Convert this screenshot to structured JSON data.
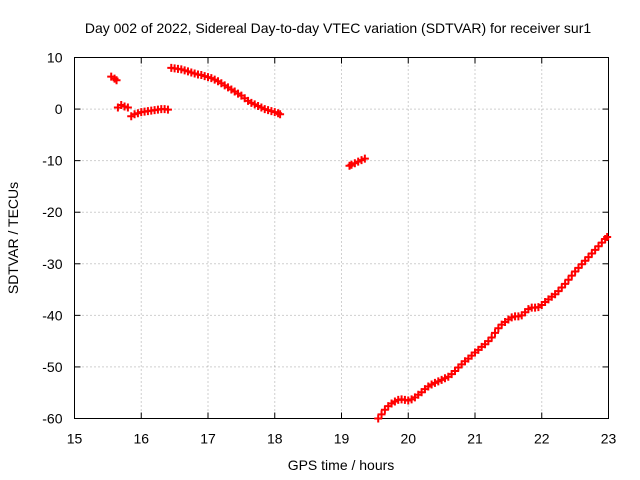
{
  "chart_data": {
    "type": "scatter",
    "title": "Day 002 of 2022, Sidereal Day-to-day VTEC variation (SDTVAR) for receiver sur1",
    "xlabel": "GPS time / hours",
    "ylabel": "SDTVAR / TECUs",
    "xlim": [
      15,
      23
    ],
    "ylim": [
      -60,
      10
    ],
    "xticks": [
      15,
      16,
      17,
      18,
      19,
      20,
      21,
      22,
      23
    ],
    "yticks": [
      10,
      0,
      -10,
      -20,
      -30,
      -40,
      -50,
      -60
    ],
    "xtick_labels": [
      "15",
      "16",
      "17",
      "18",
      "19",
      "20",
      "21",
      "22",
      "23"
    ],
    "ytick_labels": [
      "10",
      "0",
      "-10",
      "-20",
      "-30",
      "-40",
      "-50",
      "-60"
    ],
    "grid": true,
    "marker": "+",
    "color": "#ff0000",
    "series": [
      {
        "name": "sur1",
        "segments": [
          [
            [
              15.55,
              6.3
            ],
            [
              15.6,
              5.9
            ],
            [
              15.63,
              5.6
            ]
          ],
          [
            [
              15.65,
              0.3
            ],
            [
              15.7,
              0.8
            ],
            [
              15.75,
              0.5
            ],
            [
              15.8,
              0.3
            ]
          ],
          [
            [
              15.85,
              -1.4
            ],
            [
              15.9,
              -1.0
            ],
            [
              15.95,
              -0.8
            ],
            [
              16.0,
              -0.6
            ],
            [
              16.05,
              -0.5
            ],
            [
              16.1,
              -0.4
            ],
            [
              16.15,
              -0.3
            ],
            [
              16.2,
              -0.2
            ],
            [
              16.25,
              -0.1
            ],
            [
              16.3,
              0.0
            ],
            [
              16.35,
              0.0
            ],
            [
              16.4,
              -0.1
            ]
          ],
          [
            [
              16.45,
              8.0
            ],
            [
              16.5,
              7.9
            ],
            [
              16.55,
              7.8
            ],
            [
              16.6,
              7.7
            ],
            [
              16.65,
              7.5
            ],
            [
              16.7,
              7.3
            ],
            [
              16.75,
              7.1
            ],
            [
              16.8,
              6.9
            ],
            [
              16.85,
              6.7
            ],
            [
              16.9,
              6.6
            ],
            [
              16.95,
              6.4
            ],
            [
              17.0,
              6.2
            ],
            [
              17.05,
              6.0
            ],
            [
              17.1,
              5.7
            ],
            [
              17.15,
              5.4
            ],
            [
              17.2,
              5.0
            ],
            [
              17.25,
              4.6
            ],
            [
              17.3,
              4.2
            ],
            [
              17.35,
              3.8
            ],
            [
              17.4,
              3.4
            ],
            [
              17.45,
              3.0
            ],
            [
              17.5,
              2.6
            ],
            [
              17.55,
              2.1
            ],
            [
              17.6,
              1.6
            ],
            [
              17.65,
              1.2
            ],
            [
              17.7,
              0.9
            ],
            [
              17.75,
              0.6
            ],
            [
              17.8,
              0.3
            ],
            [
              17.85,
              0.0
            ],
            [
              17.9,
              -0.2
            ],
            [
              17.95,
              -0.4
            ],
            [
              18.0,
              -0.6
            ],
            [
              18.05,
              -0.8
            ],
            [
              18.08,
              -1.0
            ]
          ],
          [
            [
              19.12,
              -11.0
            ],
            [
              19.15,
              -10.8
            ],
            [
              19.2,
              -10.5
            ],
            [
              19.25,
              -10.2
            ],
            [
              19.3,
              -9.9
            ],
            [
              19.35,
              -9.6
            ]
          ],
          [
            [
              19.55,
              -60.0
            ],
            [
              19.6,
              -59.2
            ],
            [
              19.65,
              -58.3
            ],
            [
              19.7,
              -57.6
            ],
            [
              19.75,
              -57.1
            ],
            [
              19.8,
              -56.7
            ],
            [
              19.85,
              -56.4
            ],
            [
              19.9,
              -56.3
            ],
            [
              19.95,
              -56.4
            ],
            [
              20.0,
              -56.5
            ],
            [
              20.05,
              -56.3
            ],
            [
              20.1,
              -55.9
            ],
            [
              20.15,
              -55.4
            ],
            [
              20.2,
              -54.9
            ],
            [
              20.25,
              -54.3
            ],
            [
              20.3,
              -53.8
            ],
            [
              20.35,
              -53.4
            ],
            [
              20.4,
              -53.1
            ],
            [
              20.45,
              -52.8
            ],
            [
              20.5,
              -52.5
            ],
            [
              20.55,
              -52.2
            ],
            [
              20.6,
              -51.9
            ],
            [
              20.65,
              -51.4
            ],
            [
              20.7,
              -50.8
            ],
            [
              20.75,
              -50.1
            ],
            [
              20.8,
              -49.5
            ],
            [
              20.85,
              -48.9
            ],
            [
              20.9,
              -48.4
            ],
            [
              20.95,
              -47.8
            ],
            [
              21.0,
              -47.2
            ],
            [
              21.05,
              -46.7
            ],
            [
              21.1,
              -46.1
            ],
            [
              21.15,
              -45.6
            ],
            [
              21.2,
              -45.0
            ],
            [
              21.25,
              -44.3
            ],
            [
              21.3,
              -43.4
            ],
            [
              21.35,
              -42.5
            ],
            [
              21.4,
              -41.8
            ],
            [
              21.45,
              -41.3
            ],
            [
              21.5,
              -40.8
            ],
            [
              21.55,
              -40.4
            ],
            [
              21.6,
              -40.2
            ],
            [
              21.65,
              -40.2
            ],
            [
              21.7,
              -40.0
            ],
            [
              21.75,
              -39.4
            ],
            [
              21.8,
              -38.8
            ],
            [
              21.85,
              -38.5
            ],
            [
              21.9,
              -38.5
            ],
            [
              21.95,
              -38.4
            ],
            [
              22.0,
              -38.0
            ],
            [
              22.05,
              -37.4
            ],
            [
              22.1,
              -36.9
            ],
            [
              22.15,
              -36.4
            ],
            [
              22.2,
              -35.9
            ],
            [
              22.25,
              -35.3
            ],
            [
              22.3,
              -34.6
            ],
            [
              22.35,
              -33.9
            ],
            [
              22.4,
              -33.1
            ],
            [
              22.45,
              -32.3
            ],
            [
              22.5,
              -31.5
            ],
            [
              22.55,
              -30.8
            ],
            [
              22.6,
              -30.1
            ],
            [
              22.65,
              -29.4
            ],
            [
              22.7,
              -28.7
            ],
            [
              22.75,
              -28.0
            ],
            [
              22.8,
              -27.3
            ],
            [
              22.85,
              -26.6
            ],
            [
              22.9,
              -25.9
            ],
            [
              22.95,
              -25.2
            ],
            [
              22.98,
              -24.8
            ]
          ]
        ]
      }
    ]
  }
}
